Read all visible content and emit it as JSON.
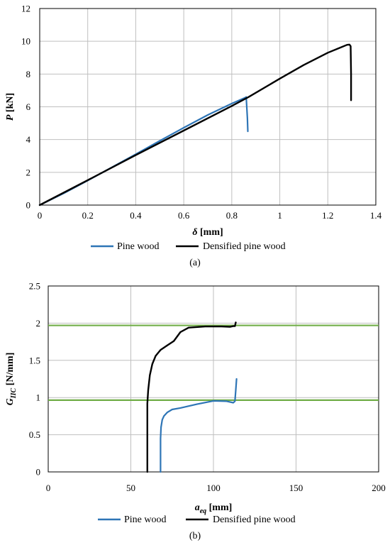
{
  "chart_data": [
    {
      "type": "line",
      "xlim": [
        0,
        1.4
      ],
      "ylim": [
        0,
        12
      ],
      "x_ticks": [
        "0",
        "0.2",
        "0.4",
        "0.6",
        "0.8",
        "1",
        "1.2",
        "1.4"
      ],
      "y_ticks": [
        "0",
        "2",
        "4",
        "6",
        "8",
        "10",
        "12"
      ],
      "xlabel_symbol": "δ",
      "xlabel_unit": " [mm]",
      "ylabel_symbol": "P",
      "ylabel_unit": " [kN]",
      "grid": true,
      "legend_position": "bottom",
      "caption": "(a)",
      "series": [
        {
          "name": "Pine wood",
          "color": "#2E75B6",
          "x": [
            0,
            0.1,
            0.2,
            0.3,
            0.4,
            0.5,
            0.6,
            0.7,
            0.8,
            0.855,
            0.86,
            0.865,
            0.867
          ],
          "y": [
            0,
            0.72,
            1.5,
            2.3,
            3.1,
            3.92,
            4.72,
            5.5,
            6.2,
            6.55,
            6.6,
            5.3,
            4.5
          ]
        },
        {
          "name": "Densified pine wood",
          "color": "#000000",
          "x": [
            0,
            0.2,
            0.4,
            0.6,
            0.8,
            0.87,
            1.0,
            1.1,
            1.2,
            1.25,
            1.28,
            1.29,
            1.295,
            1.297,
            1.297
          ],
          "y": [
            0,
            1.52,
            3.05,
            4.55,
            6.05,
            6.6,
            7.72,
            8.55,
            9.3,
            9.6,
            9.78,
            9.8,
            9.7,
            8.0,
            6.4
          ]
        }
      ]
    },
    {
      "type": "line",
      "xlim": [
        0,
        200
      ],
      "ylim": [
        0,
        2.5
      ],
      "x_ticks": [
        "0",
        "50",
        "100",
        "150",
        "200"
      ],
      "y_ticks": [
        "0",
        "0.5",
        "1",
        "1.5",
        "2",
        "2.5"
      ],
      "xlabel_symbol": "a",
      "xlabel_sub": "eq",
      "xlabel_unit": " [mm]",
      "ylabel_symbol": "G",
      "ylabel_sub": "IIC",
      "ylabel_unit": " [N/mm]",
      "grid": true,
      "legend_position": "bottom",
      "caption": "(b)",
      "reference_lines": [
        {
          "y": 1.97,
          "color": "#70AD47"
        },
        {
          "y": 0.965,
          "color": "#70AD47"
        }
      ],
      "series": [
        {
          "name": "Pine wood",
          "color": "#2E75B6",
          "x": [
            68,
            68,
            68.3,
            69,
            70,
            72,
            75,
            80,
            90,
            100,
            108,
            112,
            113,
            113.5,
            114
          ],
          "y": [
            0,
            0.45,
            0.6,
            0.7,
            0.75,
            0.8,
            0.84,
            0.86,
            0.91,
            0.955,
            0.95,
            0.93,
            0.95,
            1.1,
            1.25
          ]
        },
        {
          "name": "Densified pine wood",
          "color": "#000000",
          "x": [
            60,
            60,
            60.5,
            61.5,
            63,
            65,
            68,
            72,
            76,
            80,
            85,
            95,
            105,
            110,
            112,
            113,
            113.5
          ],
          "y": [
            0,
            0.92,
            1.1,
            1.3,
            1.45,
            1.56,
            1.64,
            1.7,
            1.76,
            1.88,
            1.94,
            1.955,
            1.955,
            1.95,
            1.96,
            1.96,
            2.01
          ]
        }
      ]
    }
  ]
}
